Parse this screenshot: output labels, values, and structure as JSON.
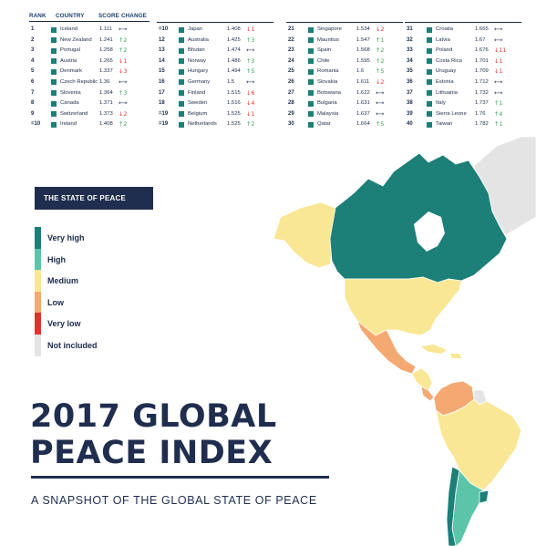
{
  "table": {
    "headers": {
      "rank": "RANK",
      "country": "COUNTRY",
      "score": "SCORE",
      "change": "CHANGE"
    },
    "columns": [
      [
        {
          "rank": "1",
          "country": "Iceland",
          "score": "1.111",
          "change": "same",
          "change_text": ""
        },
        {
          "rank": "2",
          "country": "New Zealand",
          "score": "1.241",
          "change": "up",
          "change_text": "2"
        },
        {
          "rank": "3",
          "country": "Portugal",
          "score": "1.258",
          "change": "up",
          "change_text": "2"
        },
        {
          "rank": "4",
          "country": "Austria",
          "score": "1.265",
          "change": "down",
          "change_text": "1"
        },
        {
          "rank": "5",
          "country": "Denmark",
          "score": "1.337",
          "change": "down",
          "change_text": "3"
        },
        {
          "rank": "6",
          "country": "Czech Republic",
          "score": "1.36",
          "change": "same",
          "change_text": ""
        },
        {
          "rank": "7",
          "country": "Slovenia",
          "score": "1.364",
          "change": "up",
          "change_text": "3"
        },
        {
          "rank": "8",
          "country": "Canada",
          "score": "1.371",
          "change": "same",
          "change_text": ""
        },
        {
          "rank": "9",
          "country": "Switzerland",
          "score": "1.373",
          "change": "down",
          "change_text": "2"
        },
        {
          "rank": "=10",
          "country": "Ireland",
          "score": "1.408",
          "change": "up",
          "change_text": "2"
        }
      ],
      [
        {
          "rank": "=10",
          "country": "Japan",
          "score": "1.408",
          "change": "down",
          "change_text": "1"
        },
        {
          "rank": "12",
          "country": "Australia",
          "score": "1.425",
          "change": "up",
          "change_text": "3"
        },
        {
          "rank": "13",
          "country": "Bhutan",
          "score": "1.474",
          "change": "same",
          "change_text": ""
        },
        {
          "rank": "14",
          "country": "Norway",
          "score": "1.486",
          "change": "up",
          "change_text": "3"
        },
        {
          "rank": "15",
          "country": "Hungary",
          "score": "1.494",
          "change": "up",
          "change_text": "5"
        },
        {
          "rank": "16",
          "country": "Germany",
          "score": "1.5",
          "change": "same",
          "change_text": ""
        },
        {
          "rank": "17",
          "country": "Finland",
          "score": "1.515",
          "change": "down",
          "change_text": "6"
        },
        {
          "rank": "18",
          "country": "Sweden",
          "score": "1.516",
          "change": "down",
          "change_text": "4"
        },
        {
          "rank": "=19",
          "country": "Belgium",
          "score": "1.525",
          "change": "down",
          "change_text": "1"
        },
        {
          "rank": "=19",
          "country": "Netherlands",
          "score": "1.525",
          "change": "up",
          "change_text": "2"
        }
      ],
      [
        {
          "rank": "21",
          "country": "Singapore",
          "score": "1.534",
          "change": "down",
          "change_text": "2"
        },
        {
          "rank": "22",
          "country": "Mauritius",
          "score": "1.547",
          "change": "up",
          "change_text": "1"
        },
        {
          "rank": "23",
          "country": "Spain",
          "score": "1.568",
          "change": "up",
          "change_text": "2"
        },
        {
          "rank": "24",
          "country": "Chile",
          "score": "1.595",
          "change": "up",
          "change_text": "2"
        },
        {
          "rank": "25",
          "country": "Romania",
          "score": "1.6",
          "change": "up",
          "change_text": "5"
        },
        {
          "rank": "26",
          "country": "Slovakia",
          "score": "1.611",
          "change": "down",
          "change_text": "2"
        },
        {
          "rank": "27",
          "country": "Botswana",
          "score": "1.622",
          "change": "same",
          "change_text": ""
        },
        {
          "rank": "28",
          "country": "Bulgaria",
          "score": "1.631",
          "change": "same",
          "change_text": ""
        },
        {
          "rank": "29",
          "country": "Malaysia",
          "score": "1.637",
          "change": "same",
          "change_text": ""
        },
        {
          "rank": "30",
          "country": "Qatar",
          "score": "1.664",
          "change": "up",
          "change_text": "5"
        }
      ],
      [
        {
          "rank": "31",
          "country": "Croatia",
          "score": "1.665",
          "change": "same",
          "change_text": ""
        },
        {
          "rank": "32",
          "country": "Latvia",
          "score": "1.67",
          "change": "same",
          "change_text": ""
        },
        {
          "rank": "33",
          "country": "Poland",
          "score": "1.676",
          "change": "down",
          "change_text": "11"
        },
        {
          "rank": "34",
          "country": "Costa Rica",
          "score": "1.701",
          "change": "down",
          "change_text": "1"
        },
        {
          "rank": "35",
          "country": "Uruguay",
          "score": "1.709",
          "change": "down",
          "change_text": "1"
        },
        {
          "rank": "36",
          "country": "Estonia",
          "score": "1.712",
          "change": "same",
          "change_text": ""
        },
        {
          "rank": "37",
          "country": "Lithuania",
          "score": "1.732",
          "change": "same",
          "change_text": ""
        },
        {
          "rank": "38",
          "country": "Italy",
          "score": "1.737",
          "change": "up",
          "change_text": "1"
        },
        {
          "rank": "39",
          "country": "Sierra Leone",
          "score": "1.76",
          "change": "up",
          "change_text": "4"
        },
        {
          "rank": "40",
          "country": "Taiwan",
          "score": "1.782",
          "change": "up",
          "change_text": "1"
        }
      ]
    ]
  },
  "legend": {
    "title": "THE STATE OF PEACE",
    "items": [
      {
        "label": "Very high",
        "color": "#1c7f78"
      },
      {
        "label": "High",
        "color": "#5cc4a8"
      },
      {
        "label": "Medium",
        "color": "#f9e795"
      },
      {
        "label": "Low",
        "color": "#f4a872"
      },
      {
        "label": "Very low",
        "color": "#e0332d"
      },
      {
        "label": "Not included",
        "color": "#e4e4e4"
      }
    ]
  },
  "title": {
    "line1": "2017 GLOBAL",
    "line2": "PEACE INDEX",
    "subtitle": "A SNAPSHOT OF THE GLOBAL STATE OF PEACE"
  },
  "colors": {
    "navy": "#1f2d4e",
    "very_high": "#1c7f78",
    "high": "#5cc4a8",
    "medium": "#f9e795",
    "low": "#f4a872",
    "very_low": "#e0332d",
    "not_included": "#e4e4e4"
  }
}
